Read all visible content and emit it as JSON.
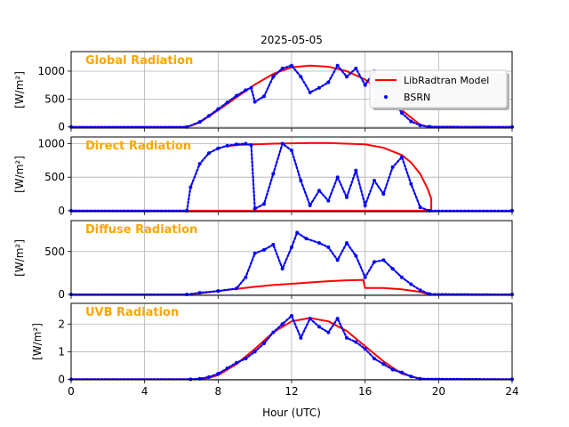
{
  "figure": {
    "title": "2025-05-05",
    "xlabel": "Hour (UTC)",
    "xlim": [
      0,
      24
    ],
    "xticks": [
      "0",
      "4",
      "8",
      "12",
      "16",
      "20",
      "24"
    ],
    "legend": {
      "model_label": "LibRadtran Model",
      "obs_label": "BSRN",
      "placement": "right of first panel"
    }
  },
  "colors": {
    "model": "#ff0000",
    "obs": "#0000ff",
    "panel_label": "#ffa500",
    "grid": "#b0b0b0"
  },
  "chart_data": [
    {
      "type": "line",
      "panel_label": "Global Radiation",
      "ylabel": "[W/m²]",
      "ylim": [
        -20,
        1350
      ],
      "yticks": [
        0,
        500,
        1000
      ],
      "series": [
        {
          "name": "LibRadtran Model",
          "style": "line",
          "x": [
            0,
            6.3,
            7,
            8,
            9,
            10,
            11,
            12,
            13,
            14,
            15,
            16,
            17,
            18,
            19,
            19.4,
            24
          ],
          "y": [
            0,
            0,
            80,
            300,
            530,
            760,
            950,
            1070,
            1100,
            1080,
            1000,
            850,
            620,
            300,
            40,
            0,
            0
          ]
        },
        {
          "name": "BSRN",
          "style": "scatter",
          "x": [
            0,
            6.3,
            7,
            7.5,
            8,
            8.5,
            9,
            9.5,
            9.8,
            10,
            10.5,
            11,
            11.5,
            12,
            12.5,
            13,
            13.5,
            14,
            14.5,
            15,
            15.5,
            16,
            16.5,
            17,
            17.5,
            18,
            18.5,
            19,
            19.5,
            24
          ],
          "y": [
            0,
            0,
            90,
            200,
            320,
            440,
            560,
            660,
            700,
            450,
            550,
            900,
            1050,
            1100,
            900,
            620,
            700,
            800,
            1100,
            900,
            1050,
            750,
            1000,
            550,
            500,
            250,
            100,
            30,
            5,
            0
          ]
        }
      ]
    },
    {
      "type": "line",
      "panel_label": "Direct Radiation",
      "ylabel": "[W/m²]",
      "ylim": [
        -15,
        1100
      ],
      "yticks": [
        0,
        500,
        1000
      ],
      "series": [
        {
          "name": "LibRadtran Model",
          "style": "line",
          "x": [
            0,
            19.6,
            19.6,
            19.4,
            19.0,
            18.5,
            18,
            17,
            16,
            15,
            14,
            13,
            12,
            11,
            10,
            9,
            8.5
          ],
          "y": [
            0,
            0,
            180,
            330,
            550,
            720,
            830,
            940,
            990,
            1000,
            1010,
            1010,
            1005,
            1000,
            990,
            980,
            960
          ]
        },
        {
          "name": "BSRN",
          "style": "scatter",
          "x": [
            0,
            6.3,
            6.5,
            7,
            7.5,
            8,
            8.5,
            9,
            9.5,
            9.8,
            10,
            10.5,
            11,
            11.5,
            12,
            12.5,
            13,
            13.5,
            14,
            14.5,
            15,
            15.5,
            16,
            16.5,
            17,
            17.5,
            18,
            18.5,
            19,
            19.5,
            24
          ],
          "y": [
            0,
            0,
            350,
            700,
            860,
            930,
            970,
            990,
            1000,
            980,
            30,
            100,
            550,
            1000,
            900,
            450,
            80,
            300,
            150,
            500,
            200,
            600,
            80,
            450,
            250,
            650,
            800,
            400,
            50,
            0,
            0
          ]
        }
      ]
    },
    {
      "type": "line",
      "panel_label": "Diffuse Radiation",
      "ylabel": "[W/m²]",
      "ylim": [
        -10,
        860
      ],
      "yticks": [
        0,
        500
      ],
      "series": [
        {
          "name": "LibRadtran Model",
          "style": "line",
          "x": [
            0,
            6.5,
            7,
            8,
            9,
            10,
            11,
            12,
            13,
            14,
            15,
            15.9,
            16,
            17,
            18,
            19,
            19.5,
            24
          ],
          "y": [
            0,
            0,
            15,
            40,
            65,
            90,
            110,
            125,
            140,
            155,
            165,
            170,
            75,
            75,
            60,
            30,
            0,
            0
          ]
        },
        {
          "name": "BSRN",
          "style": "scatter",
          "x": [
            0,
            6.3,
            7,
            8,
            9,
            9.5,
            10,
            10.5,
            11,
            11.5,
            12,
            12.3,
            12.8,
            13.5,
            14,
            14.5,
            15,
            15.5,
            16,
            16.5,
            17,
            17.5,
            18,
            18.5,
            19,
            19.5,
            24
          ],
          "y": [
            0,
            0,
            20,
            40,
            70,
            200,
            480,
            520,
            580,
            300,
            550,
            720,
            650,
            600,
            550,
            400,
            600,
            450,
            200,
            380,
            400,
            300,
            200,
            120,
            50,
            5,
            0
          ]
        }
      ]
    },
    {
      "type": "line",
      "panel_label": "UVB Radiation",
      "ylabel": "[W/m²]",
      "ylim": [
        -0.02,
        2.75
      ],
      "yticks": [
        0,
        1,
        2
      ],
      "series": [
        {
          "name": "LibRadtran Model",
          "style": "line",
          "x": [
            0,
            6.8,
            7.5,
            8,
            9,
            10,
            11,
            12,
            13,
            14,
            15,
            16,
            17,
            18,
            19,
            19.4,
            24
          ],
          "y": [
            0,
            0,
            0.05,
            0.15,
            0.55,
            1.1,
            1.7,
            2.1,
            2.22,
            2.1,
            1.75,
            1.2,
            0.65,
            0.2,
            0.02,
            0,
            0
          ]
        },
        {
          "name": "BSRN",
          "style": "scatter",
          "x": [
            0,
            6.5,
            7,
            7.5,
            8,
            8.5,
            9,
            9.5,
            10,
            10.5,
            11,
            11.5,
            12,
            12.5,
            13,
            13.5,
            14,
            14.5,
            15,
            15.5,
            16,
            16.5,
            17,
            17.5,
            18,
            18.5,
            19,
            24
          ],
          "y": [
            0,
            0,
            0.02,
            0.08,
            0.2,
            0.4,
            0.6,
            0.75,
            1.0,
            1.3,
            1.7,
            2.0,
            2.3,
            1.5,
            2.2,
            1.9,
            1.7,
            2.2,
            1.5,
            1.35,
            1.1,
            0.75,
            0.55,
            0.35,
            0.25,
            0.1,
            0.02,
            0
          ]
        }
      ]
    }
  ]
}
